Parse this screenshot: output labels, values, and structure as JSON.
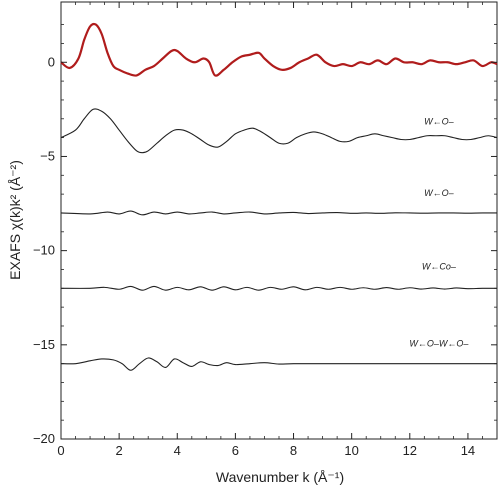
{
  "chart_data": {
    "type": "line",
    "xlabel": "Wavenumber k (Å⁻¹)",
    "ylabel": "EXAFS χ(k)k² (Å⁻²)",
    "xlim": [
      0,
      15
    ],
    "ylim": [
      -20,
      3.2
    ],
    "x_ticks": [
      0,
      2,
      4,
      6,
      8,
      10,
      12,
      14
    ],
    "y_ticks": [
      0,
      -5,
      -10,
      -15,
      -20
    ],
    "grid": false,
    "colors": {
      "experimental": "#b01c1c",
      "paths": "#222222"
    },
    "series": [
      {
        "name": "",
        "color": "#b01c1c",
        "x": [
          0,
          0.3,
          0.6,
          0.8,
          1.0,
          1.2,
          1.4,
          1.6,
          1.8,
          2.0,
          2.3,
          2.6,
          2.9,
          3.2,
          3.5,
          3.8,
          4.0,
          4.3,
          4.6,
          4.9,
          5.1,
          5.3,
          5.6,
          5.9,
          6.2,
          6.5,
          6.8,
          7.0,
          7.3,
          7.6,
          7.9,
          8.2,
          8.5,
          8.8,
          9.1,
          9.4,
          9.7,
          10.0,
          10.3,
          10.6,
          10.9,
          11.2,
          11.5,
          11.8,
          12.1,
          12.4,
          12.7,
          13.0,
          13.3,
          13.6,
          13.9,
          14.2,
          14.5,
          14.8,
          15.0
        ],
        "values": [
          0.0,
          -0.3,
          0.2,
          1.2,
          1.9,
          2.0,
          1.5,
          0.5,
          -0.2,
          -0.4,
          -0.6,
          -0.7,
          -0.4,
          -0.2,
          0.2,
          0.6,
          0.6,
          0.2,
          0.0,
          0.2,
          0.0,
          -0.7,
          -0.4,
          0.0,
          0.3,
          0.4,
          0.5,
          0.2,
          -0.2,
          -0.4,
          -0.3,
          0.0,
          0.2,
          0.4,
          0.0,
          -0.2,
          -0.1,
          -0.2,
          0.0,
          -0.1,
          0.1,
          -0.1,
          0.2,
          0.0,
          0.0,
          -0.1,
          0.1,
          0.0,
          0.0,
          -0.1,
          0.0,
          0.1,
          -0.2,
          0.0,
          -0.1
        ]
      },
      {
        "name": "W←O–",
        "color": "#222222",
        "x": [
          0,
          0.5,
          0.8,
          1.1,
          1.4,
          1.7,
          2.0,
          2.3,
          2.6,
          2.8,
          3.0,
          3.3,
          3.6,
          3.9,
          4.2,
          4.5,
          4.8,
          5.1,
          5.4,
          5.7,
          6.0,
          6.3,
          6.6,
          6.9,
          7.2,
          7.5,
          7.8,
          8.1,
          8.4,
          8.7,
          9.0,
          9.3,
          9.6,
          9.9,
          10.2,
          10.5,
          10.8,
          11.1,
          11.4,
          11.7,
          12.0,
          12.3,
          12.6,
          12.9,
          13.2,
          13.5,
          13.8,
          14.1,
          14.4,
          14.7,
          15.0
        ],
        "values": [
          -4.0,
          -3.6,
          -3.0,
          -2.5,
          -2.6,
          -3.0,
          -3.6,
          -4.2,
          -4.7,
          -4.8,
          -4.7,
          -4.3,
          -3.9,
          -3.6,
          -3.6,
          -3.8,
          -4.1,
          -4.4,
          -4.5,
          -4.2,
          -3.8,
          -3.6,
          -3.5,
          -3.7,
          -4.0,
          -4.3,
          -4.3,
          -4.0,
          -3.8,
          -3.7,
          -3.8,
          -4.0,
          -4.2,
          -4.2,
          -4.0,
          -3.9,
          -3.8,
          -3.9,
          -4.0,
          -4.1,
          -4.1,
          -4.0,
          -3.9,
          -3.9,
          -3.9,
          -4.0,
          -4.1,
          -4.1,
          -4.0,
          -3.9,
          -4.0
        ]
      },
      {
        "name": "W←O–",
        "color": "#222222",
        "x": [
          0,
          1.0,
          1.6,
          2.0,
          2.4,
          2.8,
          3.2,
          3.6,
          4.0,
          4.4,
          4.8,
          5.2,
          5.6,
          6.0,
          6.5,
          7.0,
          7.5,
          8.0,
          8.5,
          9.0,
          9.5,
          10.0,
          10.5,
          11.0,
          11.5,
          12.0,
          12.5,
          13.0,
          13.5,
          14.0,
          14.5,
          15.0
        ],
        "values": [
          -8.0,
          -8.05,
          -7.95,
          -8.05,
          -7.9,
          -8.1,
          -7.95,
          -8.05,
          -7.95,
          -8.05,
          -8.0,
          -7.95,
          -8.05,
          -8.0,
          -7.95,
          -8.05,
          -8.0,
          -7.97,
          -8.03,
          -8.0,
          -7.98,
          -8.02,
          -8.0,
          -8.02,
          -7.99,
          -8.0,
          -8.01,
          -8.0,
          -8.0,
          -8.01,
          -8.0,
          -8.0
        ]
      },
      {
        "name": "W←Co–",
        "color": "#222222",
        "x": [
          0,
          1.0,
          1.5,
          2.0,
          2.4,
          2.8,
          3.2,
          3.6,
          4.0,
          4.4,
          4.8,
          5.2,
          5.6,
          6.0,
          6.4,
          6.8,
          7.2,
          7.6,
          8.0,
          8.4,
          8.8,
          9.2,
          9.6,
          10.0,
          10.4,
          10.8,
          11.2,
          11.6,
          12.0,
          12.4,
          12.8,
          13.2,
          13.6,
          14.0,
          14.5,
          15.0
        ],
        "values": [
          -12.0,
          -12.0,
          -11.95,
          -12.05,
          -11.9,
          -12.1,
          -11.9,
          -12.1,
          -11.95,
          -12.08,
          -11.92,
          -12.1,
          -11.92,
          -12.08,
          -11.95,
          -12.1,
          -11.95,
          -12.05,
          -11.92,
          -12.08,
          -11.95,
          -12.05,
          -11.95,
          -12.05,
          -11.97,
          -12.05,
          -11.96,
          -12.05,
          -11.97,
          -12.04,
          -11.98,
          -12.04,
          -11.98,
          -12.02,
          -12.0,
          -12.0
        ]
      },
      {
        "name": "W←O–W←O–",
        "color": "#222222",
        "x": [
          0,
          0.5,
          1.0,
          1.4,
          1.8,
          2.1,
          2.4,
          2.7,
          3.0,
          3.3,
          3.6,
          3.9,
          4.2,
          4.5,
          4.8,
          5.1,
          5.4,
          5.7,
          6.0,
          6.5,
          7.0,
          7.5,
          8.0,
          9.0,
          10.0,
          11.0,
          12.0,
          13.0,
          14.0,
          15.0
        ],
        "values": [
          -16.0,
          -16.0,
          -15.85,
          -15.75,
          -15.8,
          -16.0,
          -16.35,
          -16.0,
          -15.7,
          -15.9,
          -16.2,
          -15.75,
          -15.95,
          -16.15,
          -15.9,
          -16.05,
          -16.1,
          -15.95,
          -16.05,
          -16.0,
          -15.95,
          -16.02,
          -16.0,
          -16.0,
          -16.0,
          -16.0,
          -16.0,
          -16.0,
          -16.0,
          -16.0
        ]
      }
    ],
    "annotations": [
      {
        "text": "W←O–",
        "x": 13.0,
        "y": -3.3
      },
      {
        "text": "W←O–",
        "x": 13.0,
        "y": -7.1
      },
      {
        "text": "W←Co–",
        "x": 13.0,
        "y": -11.0
      },
      {
        "text": "W←O–W←O–",
        "x": 13.0,
        "y": -15.1
      }
    ]
  }
}
